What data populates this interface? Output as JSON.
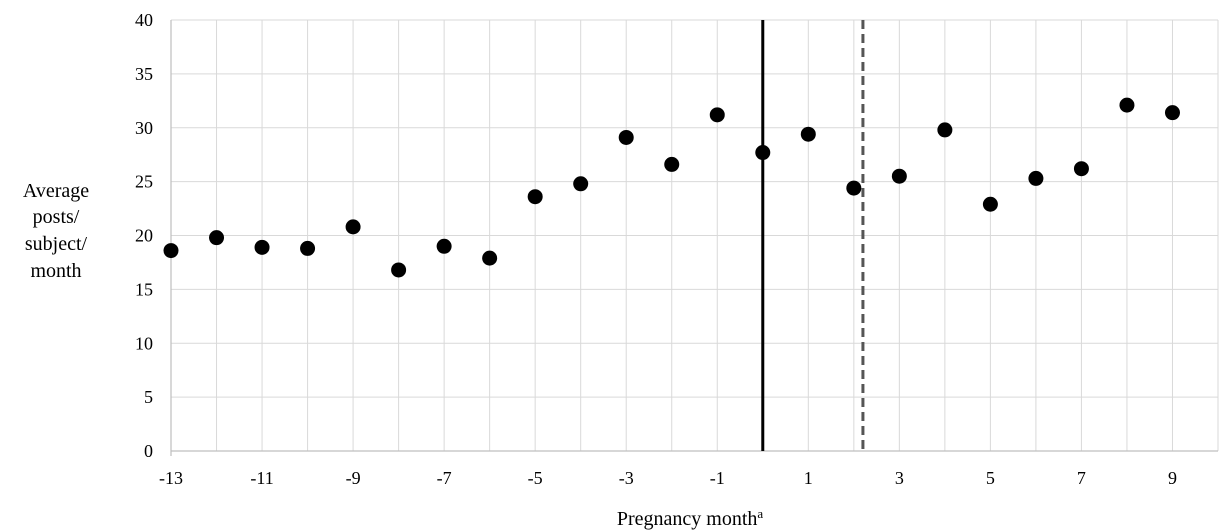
{
  "chart_data": {
    "type": "scatter",
    "xlabel": "Pregnancy month",
    "xlabel_superscript": "a",
    "ylabel_lines": [
      "Average",
      "posts/",
      "subject/",
      "month"
    ],
    "xlim": [
      -13,
      10
    ],
    "ylim": [
      0,
      40
    ],
    "y_ticks": [
      0,
      5,
      10,
      15,
      20,
      25,
      30,
      35,
      40
    ],
    "x_tick_labels": [
      "-13",
      "-11",
      "-9",
      "-7",
      "-5",
      "-3",
      "-1",
      "1",
      "3",
      "5",
      "7",
      "9"
    ],
    "grid": true,
    "series": [
      {
        "x": [
          -13,
          -12,
          -11,
          -10,
          -9,
          -8,
          -7,
          -6,
          -5,
          -4,
          -3,
          -2,
          -1,
          0,
          1,
          2,
          3,
          4,
          5,
          6,
          7,
          8,
          9
        ],
        "y": [
          18.6,
          19.8,
          18.9,
          18.8,
          20.8,
          16.8,
          19.0,
          17.9,
          23.6,
          24.8,
          29.1,
          26.6,
          31.2,
          27.7,
          29.4,
          24.4,
          25.5,
          29.8,
          22.9,
          25.3,
          26.2,
          32.1,
          31.4
        ]
      }
    ],
    "reference_lines": [
      {
        "x": 0,
        "style": "solid",
        "color": "#000000"
      },
      {
        "x": 2.2,
        "style": "dashed",
        "color": "#555555"
      }
    ],
    "colors": {
      "points": "#000000",
      "grid": "#d9d9d9",
      "axis": "#bfbfbf"
    }
  }
}
